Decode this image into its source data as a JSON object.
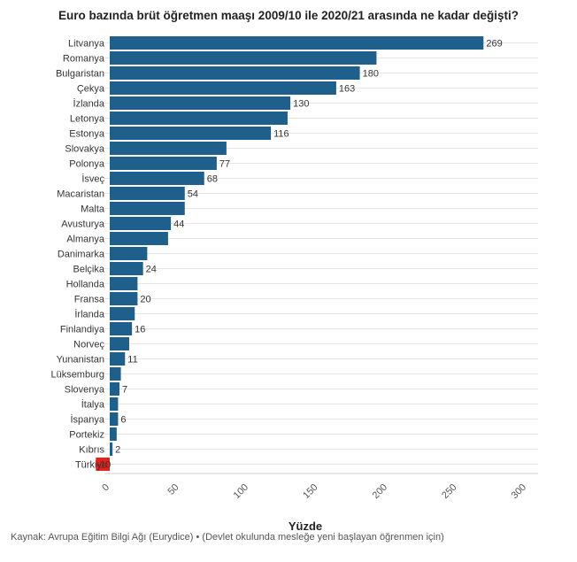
{
  "chart_data": {
    "type": "bar",
    "orientation": "horizontal",
    "title": "Euro bazında brüt öğretmen maaşı 2009/10 ile 2020/21 arasında ne kadar değişti?",
    "xlabel": "Yüzde",
    "ylabel": "",
    "xlim": [
      -10,
      300
    ],
    "xticks": [
      0,
      50,
      100,
      150,
      200,
      250,
      300
    ],
    "grid": true,
    "categories": [
      "Litvanya",
      "Romanya",
      "Bulgaristan",
      "Çekya",
      "İzlanda",
      "Letonya",
      "Estonya",
      "Slovakya",
      "Polonya",
      "İsveç",
      "Macaristan",
      "Malta",
      "Avusturya",
      "Almanya",
      "Danimarka",
      "Belçika",
      "Hollanda",
      "Fransa",
      "İrlanda",
      "Finlandiya",
      "Norveç",
      "Yunanistan",
      "Lüksemburg",
      "Slovenya",
      "İtalya",
      "İspanya",
      "Portekiz",
      "Kıbrıs",
      "Türkiye"
    ],
    "values": [
      269,
      192,
      180,
      163,
      130,
      128,
      116,
      84,
      77,
      68,
      54,
      54,
      44,
      42,
      27,
      24,
      20,
      20,
      18,
      16,
      14,
      11,
      8,
      7,
      6,
      6,
      5,
      2,
      -10
    ],
    "data_labels": [
      "269",
      "",
      "180",
      "163",
      "130",
      "",
      "116",
      "",
      "77",
      "68",
      "54",
      "",
      "44",
      "",
      "",
      "24",
      "",
      "20",
      "",
      "16",
      "",
      "11",
      "",
      "7",
      "",
      "6",
      "",
      "2",
      "-10"
    ],
    "colors": {
      "bar": "#1f5f8b",
      "negative": "#e8211d",
      "grid": "#e6e6e6",
      "axis": "#cccccc"
    }
  },
  "source_text": "Kaynak: Avrupa Eğitim Bilgi Ağı (Eurydice) • (Devlet okulunda mesleğe yeni başlayan öğrenmen için)"
}
